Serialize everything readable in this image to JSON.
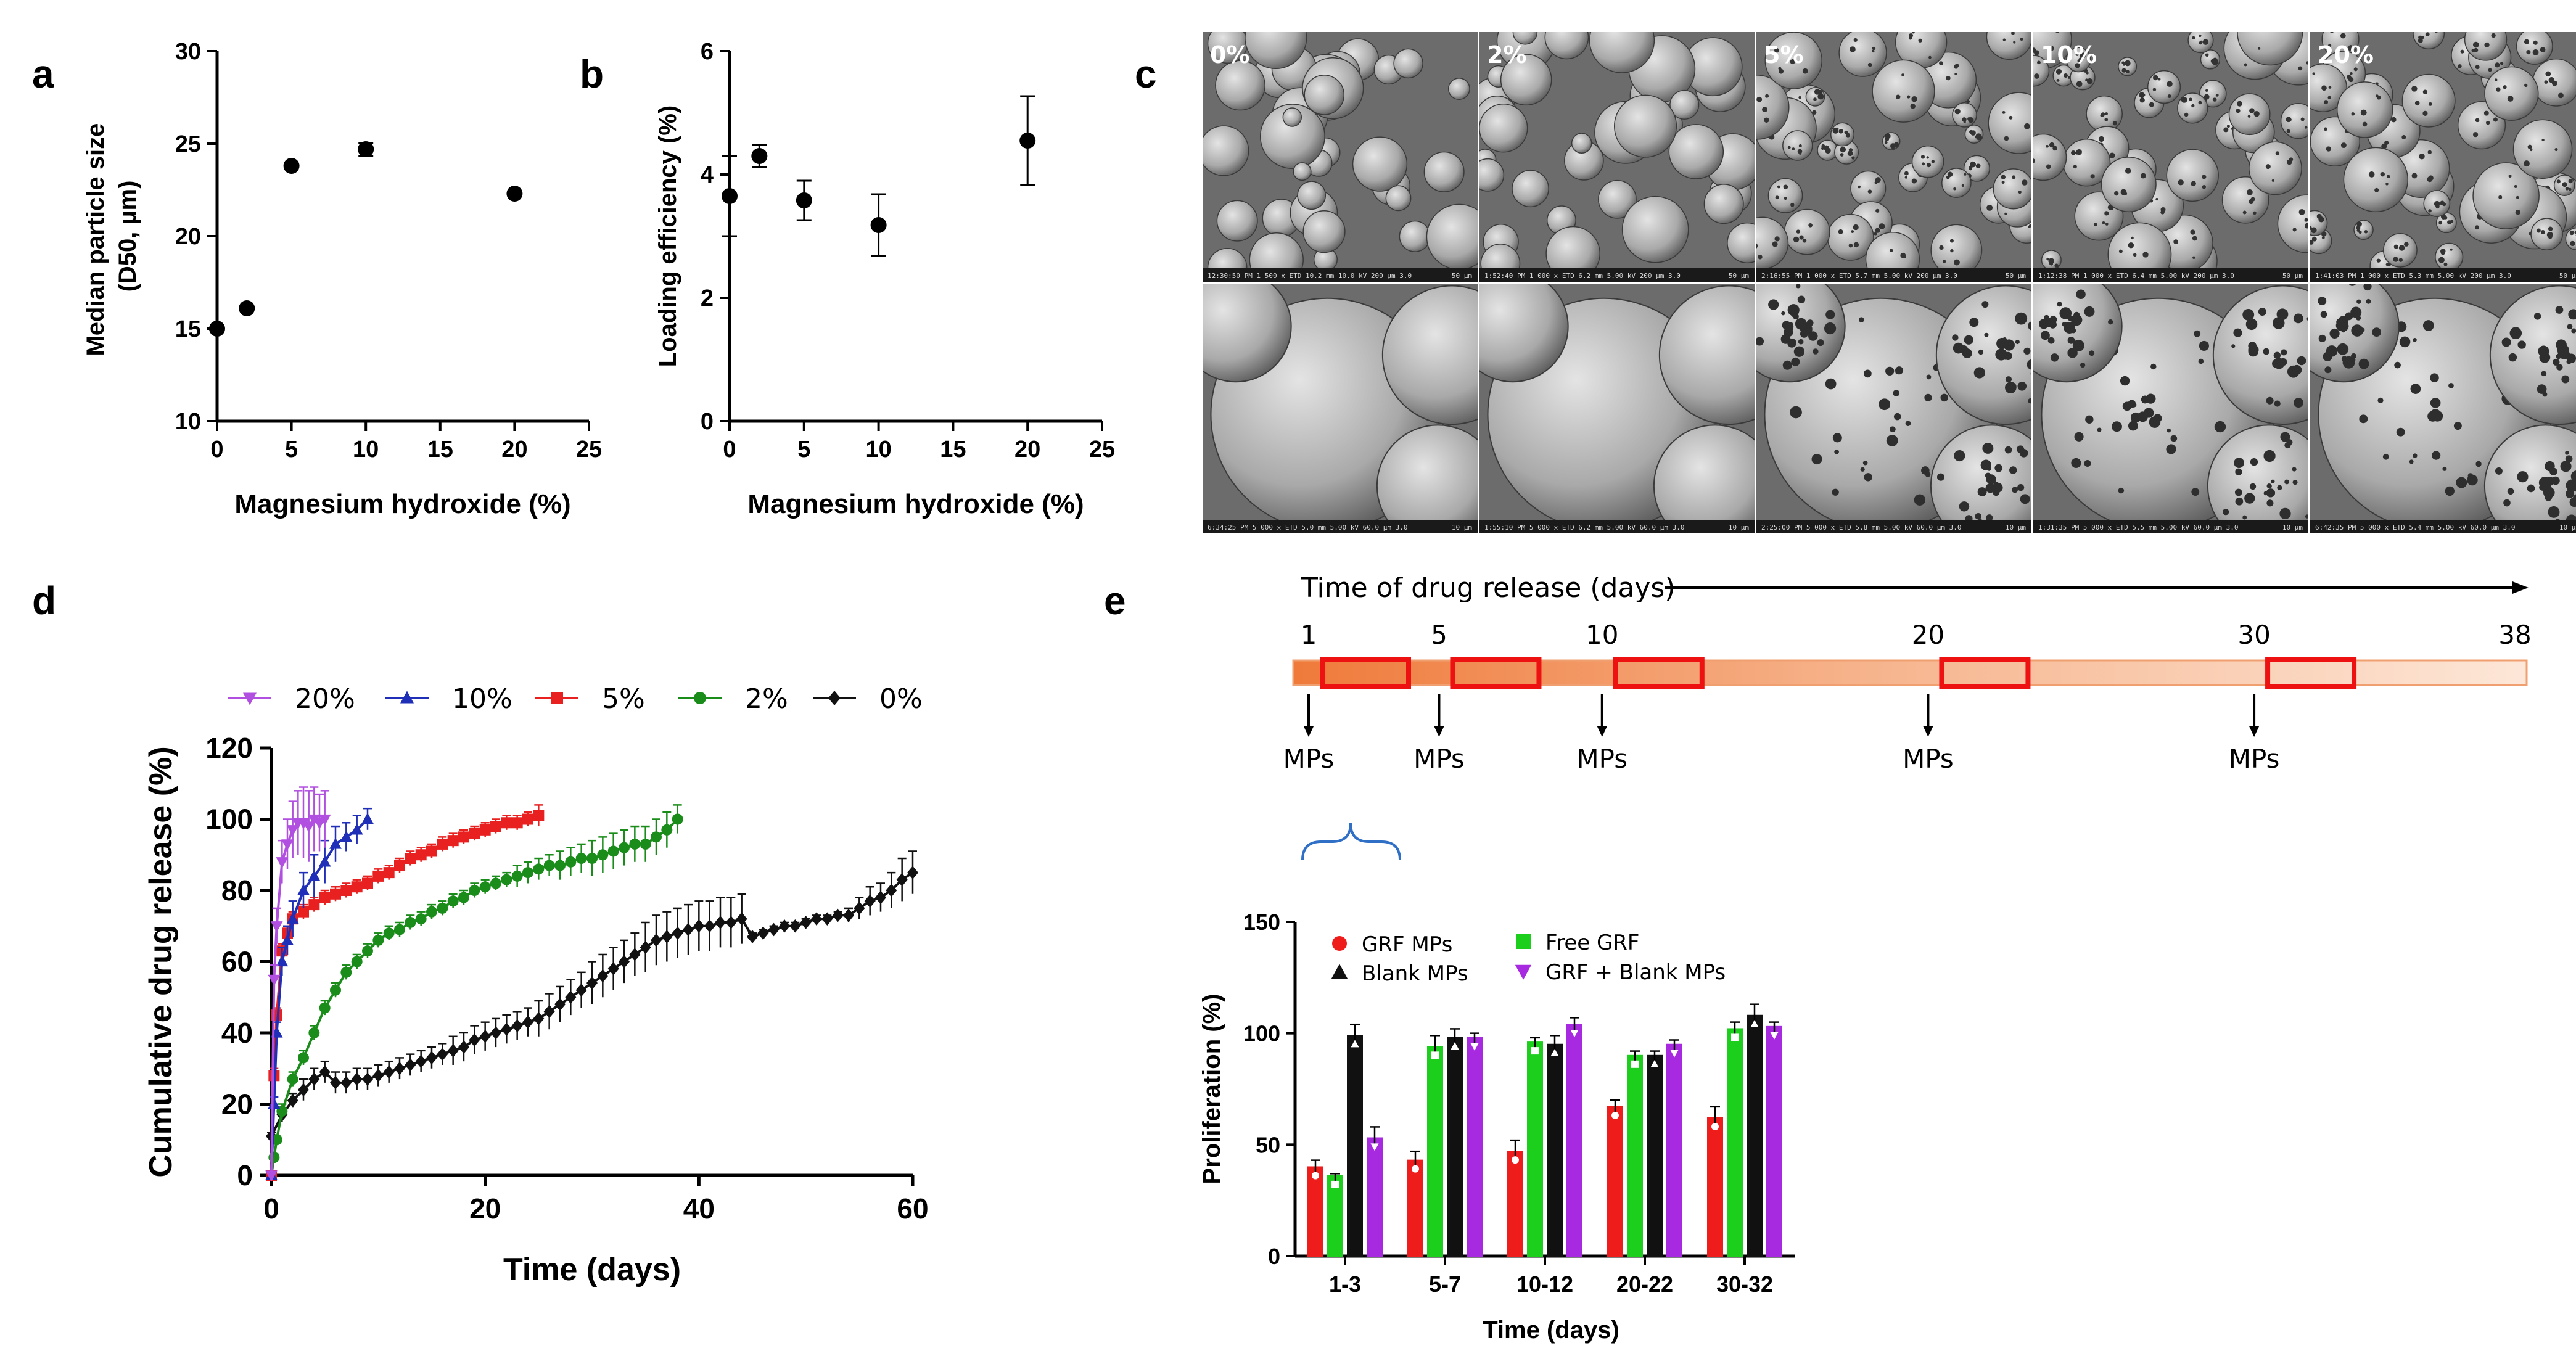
{
  "panel_labels": {
    "a": "a",
    "b": "b",
    "c": "c",
    "d": "d",
    "e": "e"
  },
  "chart_data": [
    {
      "id": "a",
      "type": "scatter",
      "xlabel": "Magnesium hydroxide (%)",
      "ylabel": "Median particle size (D50, µm)",
      "ylabel_lines": [
        "Median particle size",
        "(D50, µm)"
      ],
      "xlim": [
        0,
        25
      ],
      "ylim": [
        10,
        30
      ],
      "xticks": [
        0,
        5,
        10,
        15,
        20,
        25
      ],
      "yticks": [
        10,
        15,
        20,
        25,
        30
      ],
      "x": [
        0,
        2,
        5,
        10,
        20
      ],
      "y": [
        15.0,
        16.1,
        23.8,
        24.7,
        22.3
      ],
      "err": [
        0,
        0,
        0,
        0.35,
        0
      ]
    },
    {
      "id": "b",
      "type": "scatter",
      "xlabel": "Magnesium hydroxide (%)",
      "ylabel": "Loading efficiency (%)",
      "xlim": [
        0,
        25
      ],
      "ylim": [
        0,
        6
      ],
      "xticks": [
        0,
        5,
        10,
        15,
        20,
        25
      ],
      "yticks": [
        0,
        2,
        4,
        6
      ],
      "x": [
        0,
        2,
        5,
        10,
        20
      ],
      "y": [
        3.65,
        4.3,
        3.58,
        3.18,
        4.55
      ],
      "err": [
        0.65,
        0.18,
        0.32,
        0.5,
        0.72
      ]
    },
    {
      "id": "d",
      "type": "line",
      "xlabel": "Time (days)",
      "ylabel": "Cumulative drug release (%)",
      "xlim": [
        0,
        60
      ],
      "ylim": [
        0,
        120
      ],
      "xticks": [
        0,
        20,
        40,
        60
      ],
      "yticks": [
        0,
        20,
        40,
        60,
        80,
        100,
        120
      ],
      "legend_position": "top",
      "series": [
        {
          "name": "20%",
          "color": "#b04fe0",
          "marker": "triangle-down",
          "x": [
            0,
            0.25,
            0.5,
            1,
            1.5,
            2,
            2.5,
            3,
            3.5,
            4,
            4.5,
            5
          ],
          "y": [
            0,
            55,
            70,
            88,
            93,
            97,
            99,
            99,
            98,
            100,
            99,
            100
          ],
          "err": [
            0,
            4,
            5,
            6,
            7,
            8,
            9,
            10,
            10,
            9,
            8,
            8
          ]
        },
        {
          "name": "10%",
          "color": "#1f2fb8",
          "marker": "triangle-up",
          "x": [
            0,
            0.25,
            0.5,
            1,
            1.5,
            2,
            3,
            4,
            5,
            6,
            7,
            8,
            9
          ],
          "y": [
            0,
            20,
            40,
            60,
            66,
            72,
            80,
            84,
            88,
            93,
            95,
            97,
            100
          ],
          "err": [
            0,
            2,
            3,
            4,
            4,
            5,
            5,
            6,
            6,
            5,
            4,
            4,
            3
          ]
        },
        {
          "name": "5%",
          "color": "#e82020",
          "marker": "square",
          "x": [
            0,
            0.25,
            0.5,
            1,
            1.5,
            2,
            3,
            4,
            5,
            6,
            7,
            8,
            9,
            10,
            11,
            12,
            13,
            14,
            15,
            16,
            17,
            18,
            19,
            20,
            21,
            22,
            23,
            24,
            25
          ],
          "y": [
            0,
            28,
            45,
            63,
            68,
            72,
            74,
            76,
            78,
            79,
            80,
            81,
            82,
            84,
            85,
            87,
            89,
            90,
            91,
            93,
            94,
            95,
            96,
            97,
            98,
            99,
            99,
            100,
            101
          ],
          "err": [
            0,
            2,
            2,
            2,
            2,
            2,
            2,
            2,
            2,
            2,
            2,
            2,
            2,
            2,
            2,
            2,
            2,
            2,
            2,
            2,
            2,
            2,
            2,
            2,
            2,
            2,
            2,
            2,
            3
          ]
        },
        {
          "name": "2%",
          "color": "#1a8c1a",
          "marker": "circle",
          "x": [
            0,
            0.25,
            0.5,
            1,
            2,
            3,
            4,
            5,
            6,
            7,
            8,
            9,
            10,
            11,
            12,
            13,
            14,
            15,
            16,
            17,
            18,
            19,
            20,
            21,
            22,
            23,
            24,
            25,
            26,
            27,
            28,
            29,
            30,
            31,
            32,
            33,
            34,
            35,
            36,
            37,
            38
          ],
          "y": [
            0,
            5,
            10,
            18,
            27,
            33,
            40,
            47,
            52,
            57,
            60,
            63,
            66,
            68,
            69,
            71,
            72,
            74,
            75,
            77,
            78,
            80,
            81,
            82,
            83,
            84,
            85,
            86,
            87,
            87,
            88,
            89,
            89,
            90,
            91,
            92,
            93,
            93,
            95,
            97,
            100
          ],
          "err": [
            0,
            1,
            1,
            2,
            2,
            2,
            2,
            2,
            2,
            2,
            2,
            2,
            2,
            2,
            2,
            2,
            2,
            2,
            2,
            2,
            2,
            2,
            2,
            2,
            2,
            3,
            3,
            3,
            3,
            4,
            4,
            4,
            5,
            5,
            5,
            5,
            5,
            5,
            5,
            5,
            4
          ]
        },
        {
          "name": "0%",
          "color": "#111111",
          "marker": "diamond",
          "x": [
            0,
            1,
            2,
            3,
            4,
            5,
            6,
            7,
            8,
            9,
            10,
            11,
            12,
            13,
            14,
            15,
            16,
            17,
            18,
            19,
            20,
            21,
            22,
            23,
            24,
            25,
            26,
            27,
            28,
            29,
            30,
            31,
            32,
            33,
            34,
            35,
            36,
            37,
            38,
            39,
            40,
            41,
            42,
            43,
            44,
            45,
            46,
            47,
            48,
            49,
            50,
            51,
            52,
            53,
            54,
            55,
            56,
            57,
            58,
            59,
            60
          ],
          "y": [
            11,
            17,
            21,
            24,
            27,
            29,
            26,
            26,
            27,
            27,
            28,
            29,
            30,
            31,
            32,
            33,
            34,
            35,
            36,
            38,
            39,
            40,
            41,
            42,
            43,
            44,
            46,
            48,
            50,
            52,
            54,
            56,
            58,
            60,
            62,
            64,
            66,
            67,
            68,
            69,
            70,
            70,
            71,
            71,
            72,
            67,
            68,
            69,
            70,
            70,
            71,
            72,
            72,
            73,
            73,
            75,
            77,
            78,
            80,
            83,
            85
          ],
          "err": [
            1,
            2,
            2,
            3,
            3,
            3,
            3,
            3,
            3,
            3,
            3,
            3,
            3,
            3,
            3,
            3,
            3,
            4,
            4,
            4,
            4,
            4,
            4,
            4,
            4,
            5,
            5,
            5,
            5,
            5,
            6,
            6,
            6,
            6,
            6,
            7,
            7,
            7,
            7,
            7,
            7,
            7,
            7,
            7,
            7,
            1,
            1,
            1,
            1,
            1,
            1,
            1,
            1,
            1,
            2,
            3,
            4,
            4,
            5,
            6,
            6
          ]
        }
      ]
    },
    {
      "id": "e",
      "type": "bar",
      "xlabel": "Time (days)",
      "ylabel": "Proliferation (%)",
      "ylim": [
        0,
        150
      ],
      "yticks": [
        0,
        50,
        100,
        150
      ],
      "categories": [
        "1-3",
        "5-7",
        "10-12",
        "20-22",
        "30-32"
      ],
      "legend_position": "top-left",
      "series": [
        {
          "name": "GRF MPs",
          "color": "#ef1c1c",
          "marker": "circle",
          "values": [
            40,
            43,
            47,
            67,
            62
          ],
          "err": [
            3,
            4,
            5,
            3,
            5
          ]
        },
        {
          "name": "Free GRF",
          "color": "#1ccf1c",
          "marker": "square",
          "values": [
            36,
            94,
            96,
            90,
            102
          ],
          "err": [
            1,
            5,
            2,
            2,
            3
          ]
        },
        {
          "name": "Blank MPs",
          "color": "#111111",
          "marker": "triangle-up",
          "values": [
            99,
            98,
            95,
            90,
            108
          ],
          "err": [
            5,
            4,
            4,
            2,
            5
          ]
        },
        {
          "name": "GRF + Blank MPs",
          "color": "#a72ae0",
          "marker": "triangle-down",
          "values": [
            53,
            98,
            104,
            95,
            103
          ],
          "err": [
            5,
            2,
            3,
            2,
            2
          ]
        }
      ]
    }
  ],
  "sem": {
    "labels": [
      "0%",
      "2%",
      "5%",
      "10%",
      "20%"
    ],
    "top_captions": [
      "12:30:50 PM  1 500 x  ETD  10.2 mm  10.0 kV  200 µm  3.0",
      "1:52:40 PM  1 000 x  ETD  6.2 mm  5.00 kV  200 µm  3.0",
      "2:16:55 PM  1 000 x  ETD  5.7 mm  5.00 kV  200 µm  3.0",
      "1:12:38 PM  1 000 x  ETD  6.4 mm  5.00 kV  200 µm  3.0",
      "1:41:03 PM  1 000 x  ETD  5.3 mm  5.00 kV  200 µm  3.0"
    ],
    "bottom_captions": [
      "6:34:25 PM  5 000 x  ETD  5.0 mm  5.00 kV  60.0 µm  3.0",
      "1:55:10 PM  5 000 x  ETD  6.2 mm  5.00 kV  60.0 µm  3.0",
      "2:25:00 PM  5 000 x  ETD  5.8 mm  5.00 kV  60.0 µm  3.0",
      "1:31:35 PM  5 000 x  ETD  5.5 mm  5.00 kV  60.0 µm  3.0",
      "6:42:35 PM  5 000 x  ETD  5.4 mm  5.00 kV  60.0 µm  3.0"
    ],
    "scale_top": "50 µm",
    "scale_bottom": "10 µm",
    "pore_level": [
      0,
      0,
      1,
      1,
      1
    ]
  },
  "timeline": {
    "title": "Time of drug release (days)",
    "start": 1,
    "end": 38,
    "day_labels": [
      "1",
      "5",
      "10",
      "20",
      "30",
      "38"
    ],
    "days": [
      1,
      5,
      10,
      20,
      30,
      38
    ],
    "marker_days": [
      1,
      5,
      10,
      20,
      30
    ],
    "marker_label": "MPs",
    "bar_color": "#f08040"
  }
}
